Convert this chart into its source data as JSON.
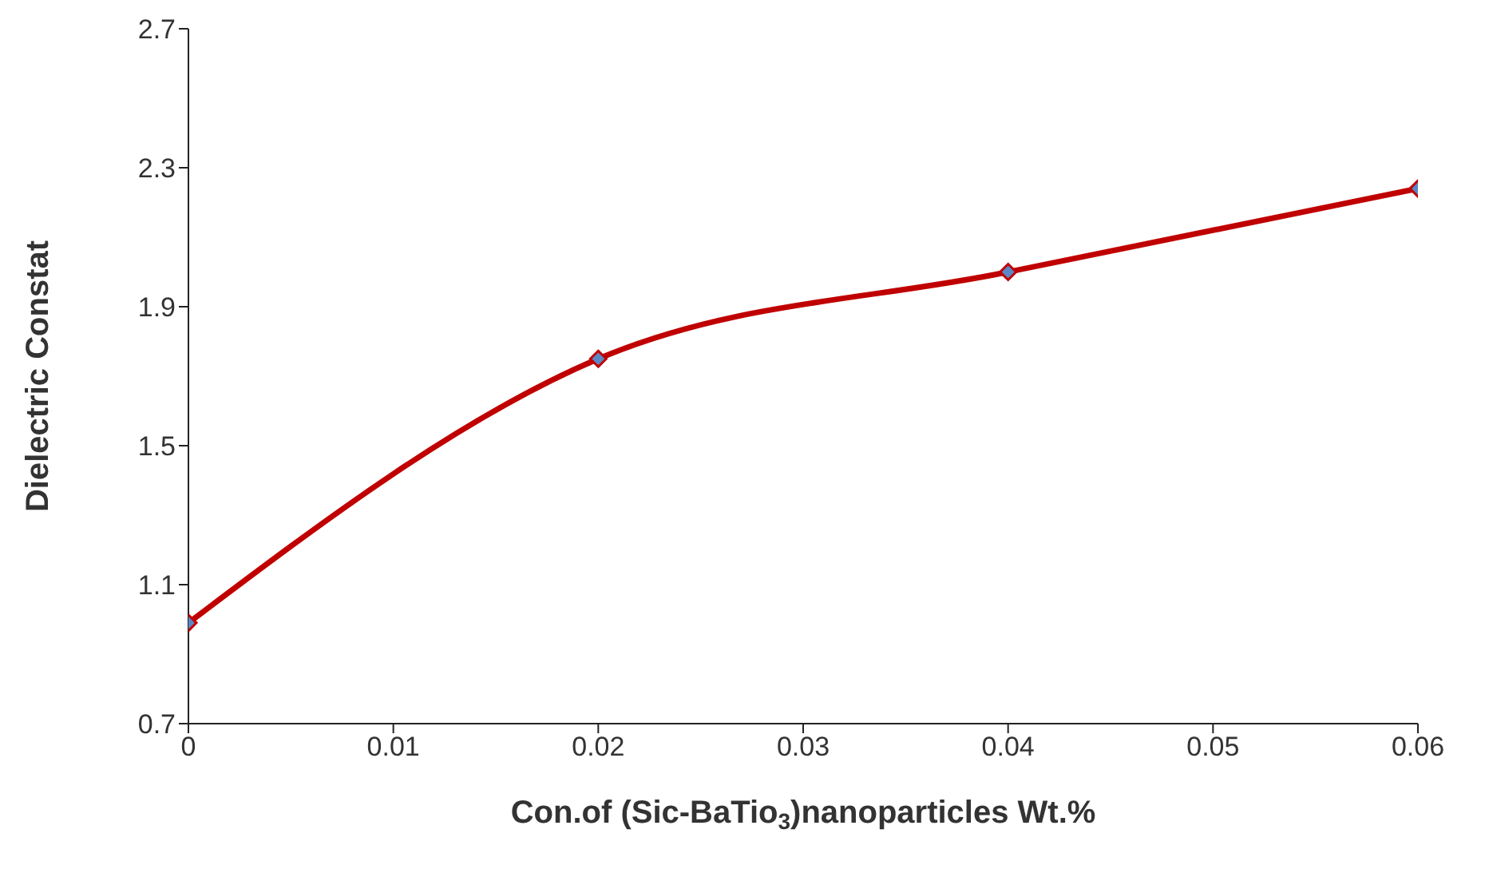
{
  "chart_data": {
    "type": "line",
    "xlabel": "Con.of (Sic-BaTio$_{3}$)nanoparticles Wt.%",
    "ylabel": "Dielectric Constat",
    "x": [
      0,
      0.02,
      0.04,
      0.06
    ],
    "series": [
      {
        "color": "#c00000",
        "values": [
          0.99,
          1.75,
          2.0,
          2.24
        ]
      }
    ],
    "xlim": [
      0,
      0.06
    ],
    "xticks": [
      0,
      0.01,
      0.02,
      0.03,
      0.04,
      0.05,
      0.06
    ],
    "ylim": [
      0.7,
      2.7
    ],
    "yticks": [
      0.7,
      1.1,
      1.5,
      1.9,
      2.3,
      2.7
    ],
    "grid": false,
    "legend": false,
    "marker": "diamond",
    "line_style": "solid"
  }
}
